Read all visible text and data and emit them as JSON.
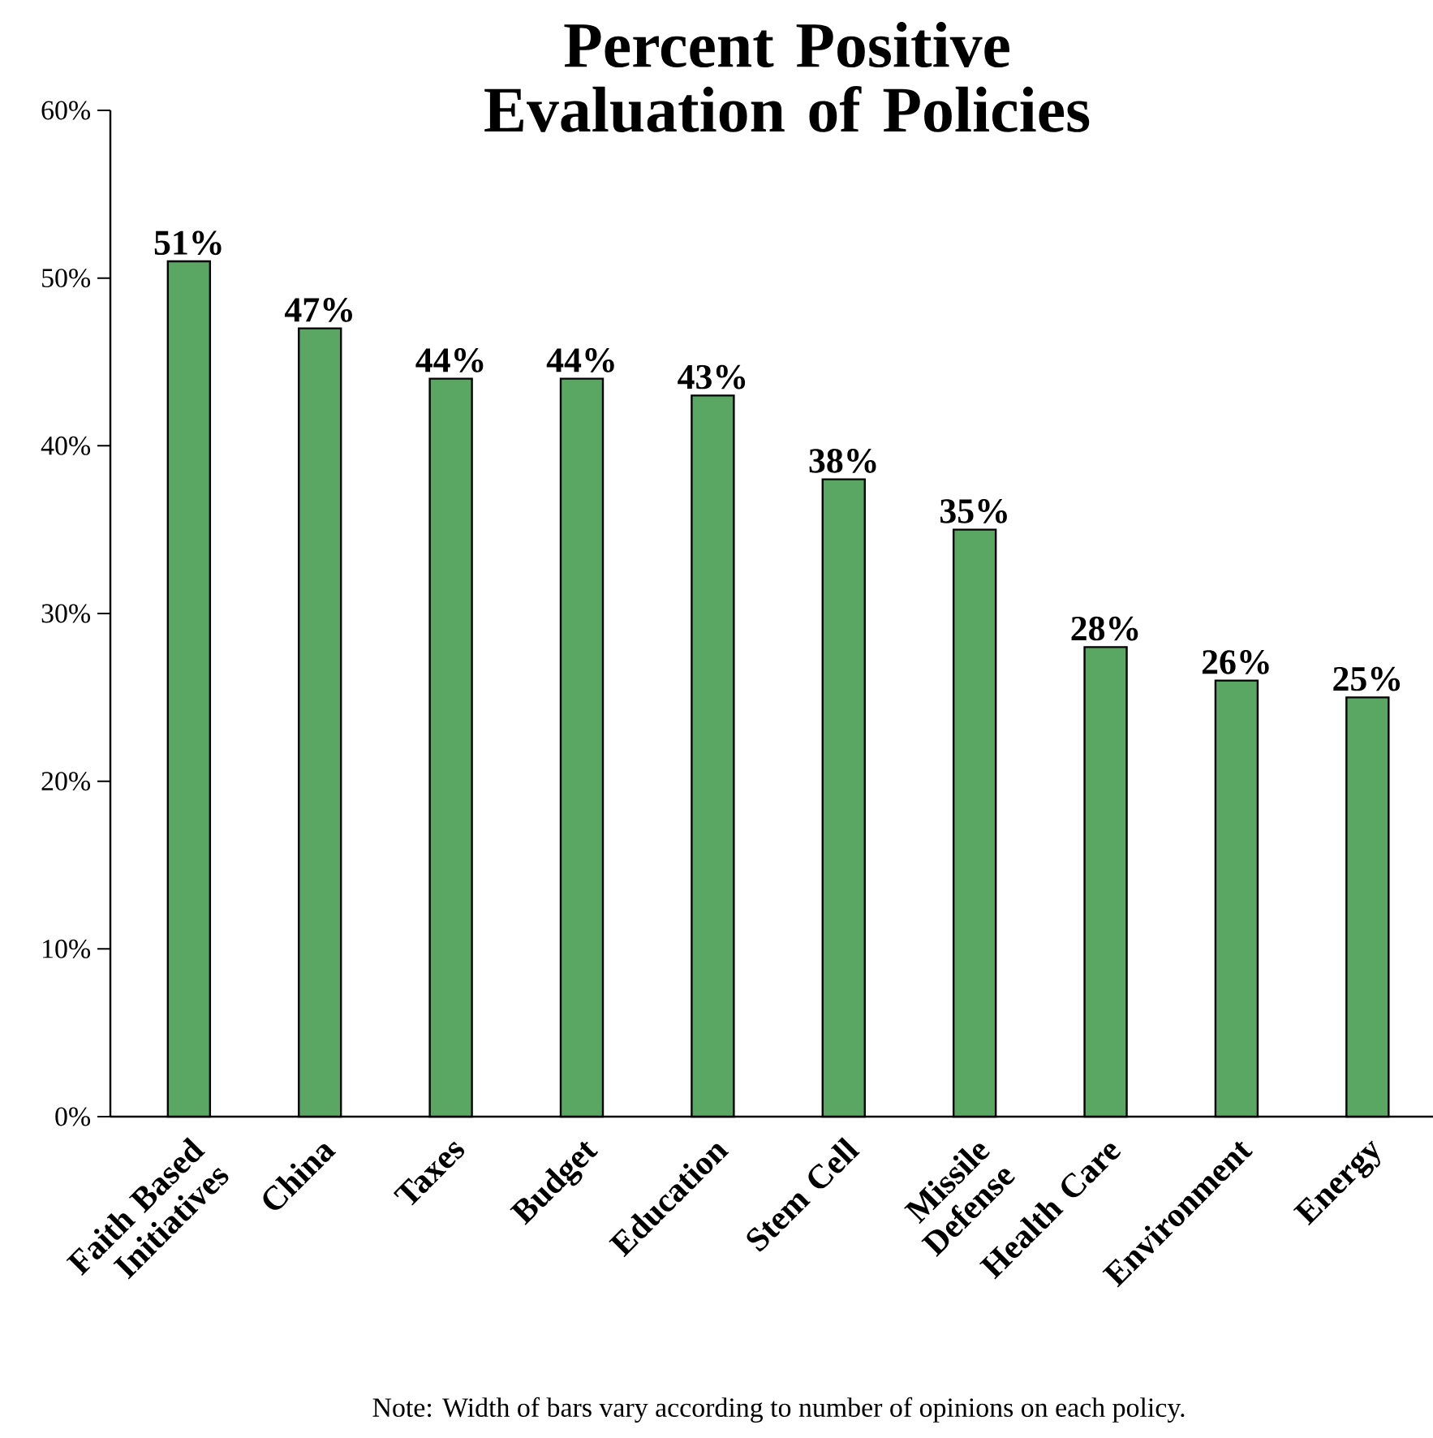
{
  "chart_data": {
    "type": "bar",
    "title": "Percent Positive Evaluation of Policies",
    "categories": [
      "Faith Based Initiatives",
      "China",
      "Taxes",
      "Budget",
      "Education",
      "Stem Cell",
      "Missile Defense",
      "Health Care",
      "Environment",
      "Energy"
    ],
    "values": [
      51,
      47,
      44,
      44,
      43,
      38,
      35,
      28,
      26,
      25
    ],
    "value_labels": [
      "51%",
      "47%",
      "44%",
      "44%",
      "43%",
      "38%",
      "35%",
      "28%",
      "26%",
      "25%"
    ],
    "color": "#5aa764",
    "ylim": [
      0,
      60
    ],
    "yticks": [
      {
        "value": 0,
        "label": "0%"
      },
      {
        "value": 10,
        "label": "10%"
      },
      {
        "value": 20,
        "label": "20%"
      },
      {
        "value": 30,
        "label": "30%"
      },
      {
        "value": 40,
        "label": "40%"
      },
      {
        "value": 50,
        "label": "50%"
      },
      {
        "value": 60,
        "label": "60%"
      }
    ],
    "annotations": [
      "Note: Width of bars vary according to number of opinions on each policy."
    ]
  }
}
